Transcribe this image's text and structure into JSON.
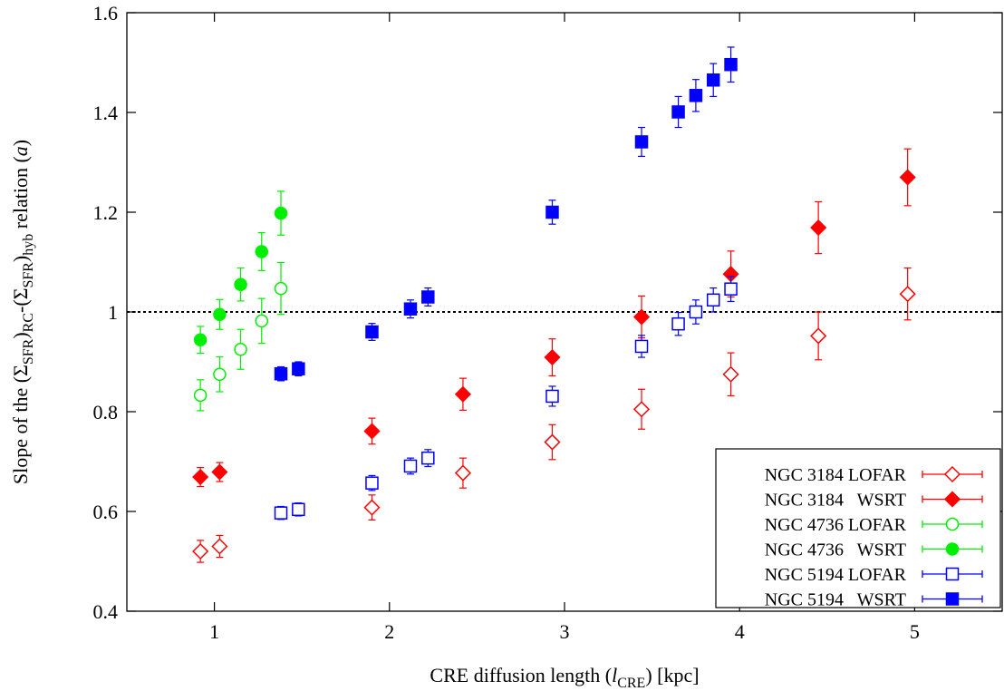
{
  "chart_data": {
    "type": "scatter",
    "xlabel": {
      "prefix": "CRE diffusion length (",
      "symbol": "l",
      "subscript": "CRE",
      "suffix": ") [kpc]"
    },
    "ylabel": {
      "p1": "Slope of the (",
      "sym1": "Σ",
      "sub1": "SFR",
      "p2": ")",
      "sub2": "RC",
      "p3": "-(",
      "sym2": "Σ",
      "sub3": "SFR",
      "p4": ")",
      "sub4": "hyb",
      "p5": " relation (",
      "sym3": "a",
      "p6": ")"
    },
    "xlim": [
      0.5,
      5.5
    ],
    "ylim": [
      0.4,
      1.6
    ],
    "xticks": [
      1,
      2,
      3,
      4,
      5
    ],
    "yticks": [
      0.4,
      0.6,
      0.8,
      1.0,
      1.2,
      1.4,
      1.6
    ],
    "ytick_labels": [
      "0.4",
      "0.6",
      "0.8",
      "1",
      "1.2",
      "1.4",
      "1.6"
    ],
    "reference_line": {
      "y": 1.0,
      "style": "dotted"
    },
    "legend_position": "bottom-right",
    "series": [
      {
        "name": "NGC 3184 LOFAR",
        "color": "#ff0000",
        "marker": "diamond-open",
        "points": [
          {
            "x": 0.92,
            "y": 0.52,
            "err": 0.022
          },
          {
            "x": 1.03,
            "y": 0.53,
            "err": 0.022
          },
          {
            "x": 1.9,
            "y": 0.608,
            "err": 0.025
          },
          {
            "x": 2.42,
            "y": 0.677,
            "err": 0.03
          },
          {
            "x": 2.93,
            "y": 0.739,
            "err": 0.035
          },
          {
            "x": 3.44,
            "y": 0.805,
            "err": 0.04
          },
          {
            "x": 3.95,
            "y": 0.875,
            "err": 0.043
          },
          {
            "x": 4.45,
            "y": 0.952,
            "err": 0.048
          },
          {
            "x": 4.96,
            "y": 1.036,
            "err": 0.052
          }
        ]
      },
      {
        "name": "NGC 3184   WSRT",
        "color": "#ff0000",
        "marker": "diamond-filled",
        "points": [
          {
            "x": 0.92,
            "y": 0.669,
            "err": 0.019
          },
          {
            "x": 1.03,
            "y": 0.679,
            "err": 0.019
          },
          {
            "x": 1.9,
            "y": 0.761,
            "err": 0.026
          },
          {
            "x": 2.42,
            "y": 0.835,
            "err": 0.032
          },
          {
            "x": 2.93,
            "y": 0.909,
            "err": 0.037
          },
          {
            "x": 3.44,
            "y": 0.99,
            "err": 0.042
          },
          {
            "x": 3.95,
            "y": 1.076,
            "err": 0.046
          },
          {
            "x": 4.45,
            "y": 1.169,
            "err": 0.052
          },
          {
            "x": 4.96,
            "y": 1.27,
            "err": 0.057
          }
        ]
      },
      {
        "name": "NGC 4736 LOFAR",
        "color": "#00ee00",
        "marker": "circle-open",
        "points": [
          {
            "x": 0.92,
            "y": 0.833,
            "err": 0.031
          },
          {
            "x": 1.03,
            "y": 0.875,
            "err": 0.035
          },
          {
            "x": 1.15,
            "y": 0.925,
            "err": 0.04
          },
          {
            "x": 1.27,
            "y": 0.982,
            "err": 0.045
          },
          {
            "x": 1.38,
            "y": 1.047,
            "err": 0.052
          }
        ]
      },
      {
        "name": "NGC 4736   WSRT",
        "color": "#00ee00",
        "marker": "circle-filled",
        "points": [
          {
            "x": 0.92,
            "y": 0.944,
            "err": 0.027
          },
          {
            "x": 1.03,
            "y": 0.995,
            "err": 0.03
          },
          {
            "x": 1.15,
            "y": 1.055,
            "err": 0.033
          },
          {
            "x": 1.27,
            "y": 1.121,
            "err": 0.038
          },
          {
            "x": 1.38,
            "y": 1.198,
            "err": 0.044
          }
        ]
      },
      {
        "name": "NGC 5194 LOFAR",
        "color": "#0000ff",
        "marker": "square-open",
        "points": [
          {
            "x": 1.38,
            "y": 0.597,
            "err": 0.013
          },
          {
            "x": 1.48,
            "y": 0.604,
            "err": 0.013
          },
          {
            "x": 1.9,
            "y": 0.657,
            "err": 0.015
          },
          {
            "x": 2.12,
            "y": 0.691,
            "err": 0.016
          },
          {
            "x": 2.22,
            "y": 0.707,
            "err": 0.017
          },
          {
            "x": 2.93,
            "y": 0.831,
            "err": 0.02
          },
          {
            "x": 3.44,
            "y": 0.931,
            "err": 0.022
          },
          {
            "x": 3.65,
            "y": 0.976,
            "err": 0.023
          },
          {
            "x": 3.75,
            "y": 1.0,
            "err": 0.024
          },
          {
            "x": 3.85,
            "y": 1.024,
            "err": 0.024
          },
          {
            "x": 3.95,
            "y": 1.046,
            "err": 0.025
          }
        ]
      },
      {
        "name": "NGC 5194   WSRT",
        "color": "#0000ff",
        "marker": "square-filled",
        "points": [
          {
            "x": 1.38,
            "y": 0.876,
            "err": 0.014
          },
          {
            "x": 1.48,
            "y": 0.886,
            "err": 0.014
          },
          {
            "x": 1.9,
            "y": 0.96,
            "err": 0.017
          },
          {
            "x": 2.12,
            "y": 1.006,
            "err": 0.018
          },
          {
            "x": 2.22,
            "y": 1.03,
            "err": 0.018
          },
          {
            "x": 2.93,
            "y": 1.2,
            "err": 0.024
          },
          {
            "x": 3.44,
            "y": 1.341,
            "err": 0.029
          },
          {
            "x": 3.65,
            "y": 1.401,
            "err": 0.031
          },
          {
            "x": 3.75,
            "y": 1.434,
            "err": 0.032
          },
          {
            "x": 3.85,
            "y": 1.465,
            "err": 0.033
          },
          {
            "x": 3.95,
            "y": 1.496,
            "err": 0.035
          }
        ]
      }
    ]
  }
}
